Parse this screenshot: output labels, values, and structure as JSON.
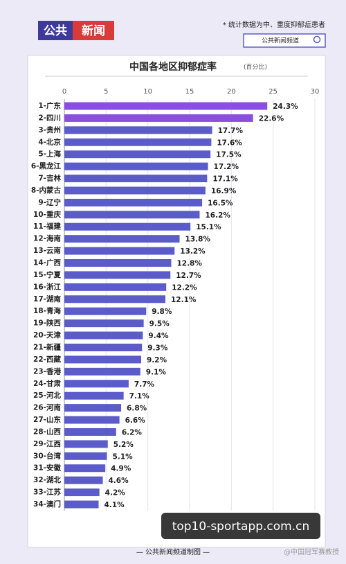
{
  "header": {
    "logo_left": "公共",
    "logo_right": "新闻",
    "note": "* 统计数据为中、重度抑郁症患者",
    "search": "公共新闻频道"
  },
  "footer": "— 公共新闻频道制图 —",
  "watermarks": [
    "top10-sportapp.com.cn",
    "@中国冠军赛教授"
  ],
  "chart_data": {
    "type": "bar",
    "orientation": "horizontal",
    "title": "中国各地区抑郁症率",
    "subtitle": "(百分比)",
    "categories": [
      "1-广东",
      "2-四川",
      "3-贵州",
      "4-北京",
      "5-上海",
      "6-黑龙江",
      "7-吉林",
      "8-内蒙古",
      "9-辽宁",
      "10-重庆",
      "11-福建",
      "12-海南",
      "13-云南",
      "14-广西",
      "15-宁夏",
      "16-浙江",
      "17-湖南",
      "18-青海",
      "19-陕西",
      "20-天津",
      "21-新疆",
      "22-西藏",
      "23-香港",
      "24-甘肃",
      "25-河北",
      "26-河南",
      "27-山东",
      "28-山西",
      "29-江西",
      "30-台湾",
      "31-安徽",
      "32-湖北",
      "33-江苏",
      "34-澳门"
    ],
    "values": [
      24.3,
      22.6,
      17.7,
      17.6,
      17.5,
      17.2,
      17.1,
      16.9,
      16.5,
      16.2,
      15.1,
      13.8,
      13.2,
      12.8,
      12.7,
      12.2,
      12.1,
      9.8,
      9.5,
      9.4,
      9.3,
      9.2,
      9.1,
      7.7,
      7.1,
      6.8,
      6.6,
      6.2,
      5.2,
      5.1,
      4.9,
      4.6,
      4.2,
      4.1
    ],
    "value_labels": [
      "24.3%",
      "22.6%",
      "17.7%",
      "17.6%",
      "17.5%",
      "17.2%",
      "17.1%",
      "16.9%",
      "16.5%",
      "16.2%",
      "15.1%",
      "13.8%",
      "13.2%",
      "12.8%",
      "12.7%",
      "12.2%",
      "12.1%",
      "9.8%",
      "9.5%",
      "9.4%",
      "9.3%",
      "9.2%",
      "9.1%",
      "7.7%",
      "7.1%",
      "6.8%",
      "6.6%",
      "6.2%",
      "5.2%",
      "5.1%",
      "4.9%",
      "4.6%",
      "4.2%",
      "4.1%"
    ],
    "colors": [
      "#8a4fe0",
      "#8a4fe0",
      "#5b5cc9",
      "#5b5cc9",
      "#5b5cc9",
      "#5b5cc9",
      "#5b5cc9",
      "#5b5cc9",
      "#5b5cc9",
      "#5b5cc9",
      "#5b5cc9",
      "#5b5cc9",
      "#5b5cc9",
      "#5b5cc9",
      "#5b5cc9",
      "#5b5cc9",
      "#5b5cc9",
      "#5b5cc9",
      "#5b5cc9",
      "#5b5cc9",
      "#5b5cc9",
      "#5b5cc9",
      "#5b5cc9",
      "#5b5cc9",
      "#5b5cc9",
      "#5b5cc9",
      "#5b5cc9",
      "#5b5cc9",
      "#5b5cc9",
      "#5b5cc9",
      "#5b5cc9",
      "#5b5cc9",
      "#5b5cc9",
      "#5b5cc9"
    ],
    "xlim": [
      0,
      30
    ],
    "xticks": [
      0,
      5,
      10,
      15,
      20,
      25,
      30
    ],
    "grid": true
  }
}
